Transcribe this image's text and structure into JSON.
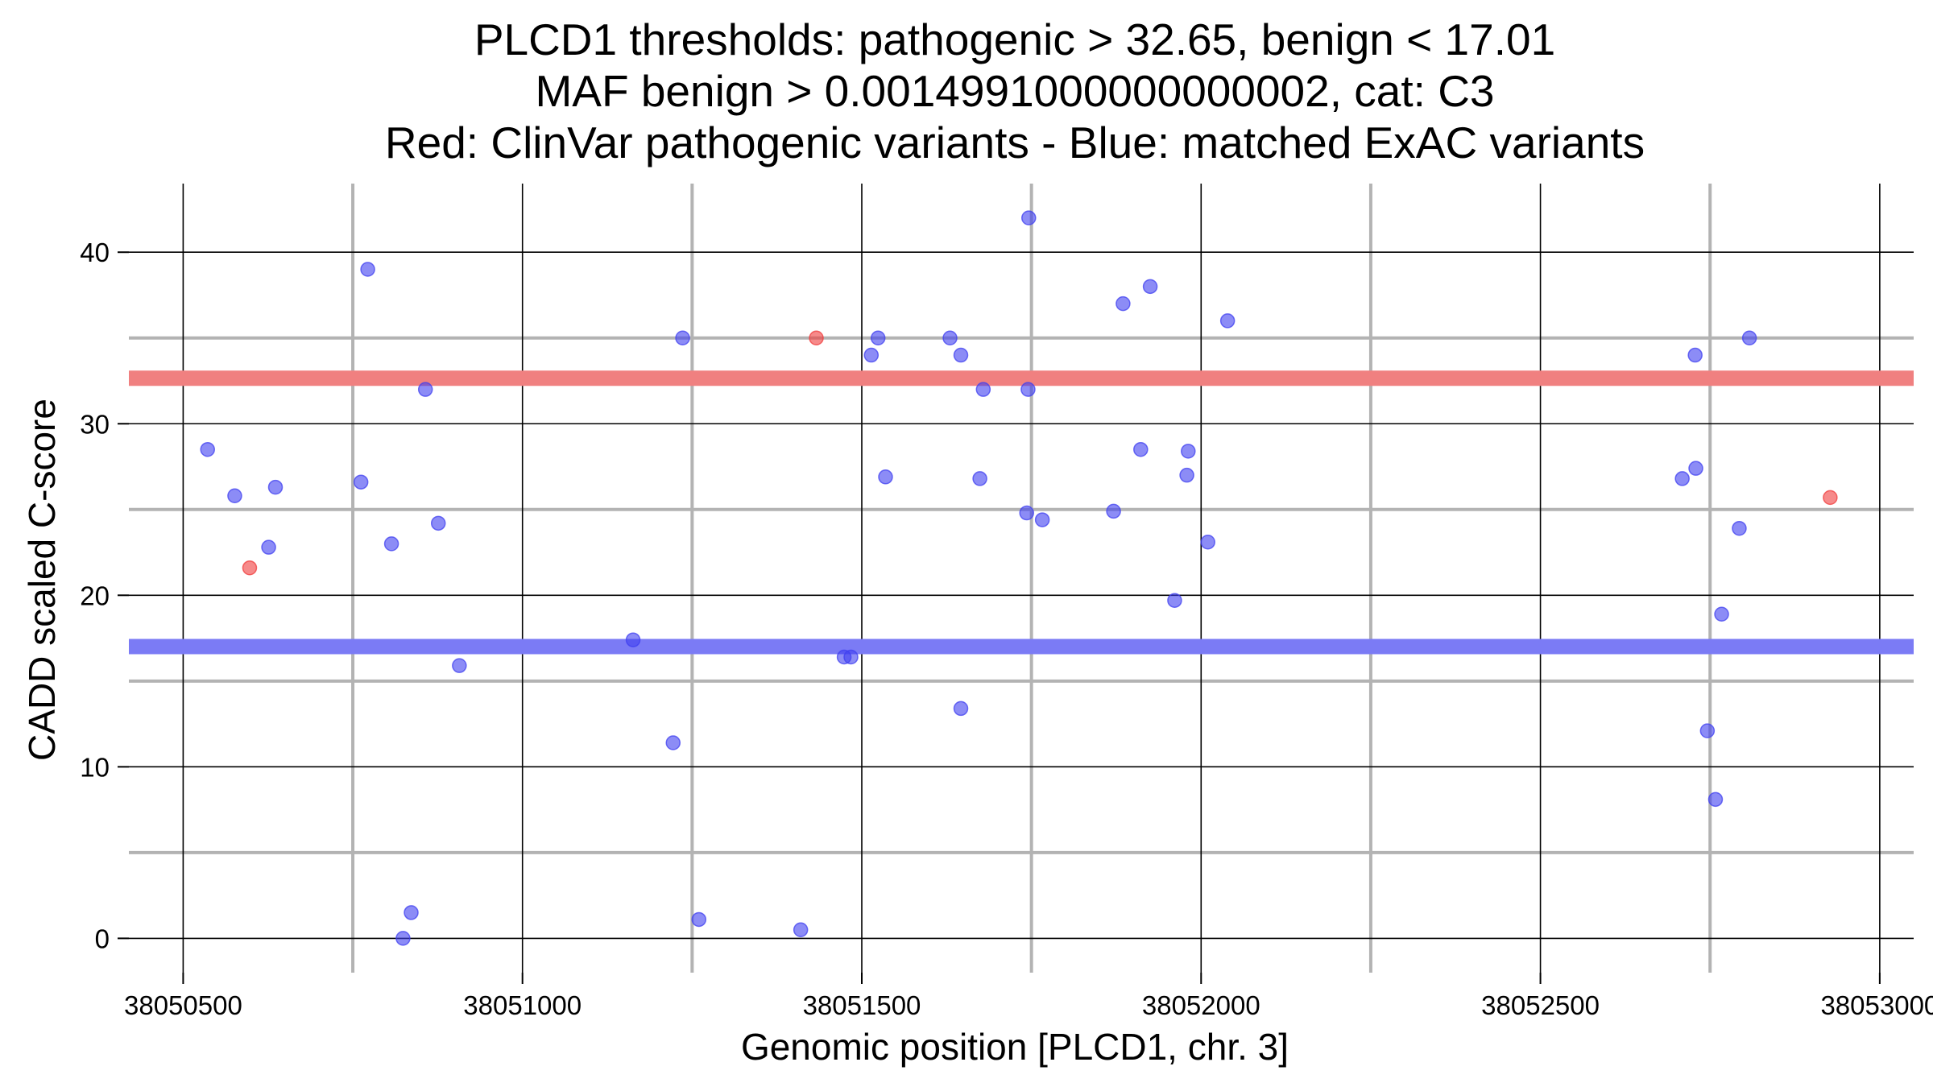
{
  "chart_data": {
    "type": "scatter",
    "title_lines": [
      "PLCD1 thresholds: pathogenic > 32.65, benign < 17.01",
      "MAF benign > 0.0014991000000000002, cat: C3",
      "Red: ClinVar pathogenic variants - Blue: matched ExAC variants"
    ],
    "xlabel": "Genomic position [PLCD1, chr. 3]",
    "ylabel": "CADD scaled C-score",
    "xlim": [
      38050420,
      38053050
    ],
    "ylim": [
      -2,
      44
    ],
    "x_ticks": [
      38050500,
      38051000,
      38051500,
      38052000,
      38052500,
      38053000
    ],
    "x_tick_labels": [
      "38050500",
      "38051000",
      "38051500",
      "38052000",
      "38052500",
      "38053000"
    ],
    "y_ticks": [
      0,
      10,
      20,
      30,
      40
    ],
    "y_tick_labels": [
      "0",
      "10",
      "20",
      "30",
      "40"
    ],
    "minor_x_gridlines": [
      38050750,
      38051250,
      38051750,
      38052250,
      38052750
    ],
    "minor_y_gridlines": [
      5,
      15,
      25,
      35
    ],
    "grid": true,
    "thresholds": [
      {
        "name": "pathogenic",
        "value": 32.65,
        "color": "#f08080"
      },
      {
        "name": "benign",
        "value": 17.01,
        "color": "#7b7bf5"
      }
    ],
    "series": [
      {
        "color": "#4040f0",
        "points": [
          {
            "x": 38050536,
            "y": 28.5
          },
          {
            "x": 38050576,
            "y": 25.8
          },
          {
            "x": 38050626,
            "y": 22.8
          },
          {
            "x": 38050636,
            "y": 26.3
          },
          {
            "x": 38050762,
            "y": 26.6
          },
          {
            "x": 38050772,
            "y": 39.0
          },
          {
            "x": 38050807,
            "y": 23.0
          },
          {
            "x": 38050824,
            "y": 0.0
          },
          {
            "x": 38050836,
            "y": 1.5
          },
          {
            "x": 38050857,
            "y": 32.0
          },
          {
            "x": 38050876,
            "y": 24.2
          },
          {
            "x": 38050907,
            "y": 15.9
          },
          {
            "x": 38051163,
            "y": 17.4
          },
          {
            "x": 38051222,
            "y": 11.4
          },
          {
            "x": 38051236,
            "y": 35.0
          },
          {
            "x": 38051260,
            "y": 1.1
          },
          {
            "x": 38051410,
            "y": 0.5
          },
          {
            "x": 38051474,
            "y": 16.4
          },
          {
            "x": 38051484,
            "y": 16.4
          },
          {
            "x": 38051514,
            "y": 34.0
          },
          {
            "x": 38051524,
            "y": 35.0
          },
          {
            "x": 38051535,
            "y": 26.9
          },
          {
            "x": 38051630,
            "y": 35.0
          },
          {
            "x": 38051646,
            "y": 34.0
          },
          {
            "x": 38051646,
            "y": 13.4
          },
          {
            "x": 38051674,
            "y": 26.8
          },
          {
            "x": 38051679,
            "y": 32.0
          },
          {
            "x": 38051743,
            "y": 24.8
          },
          {
            "x": 38051745,
            "y": 32.0
          },
          {
            "x": 38051746,
            "y": 42.0
          },
          {
            "x": 38051766,
            "y": 24.4
          },
          {
            "x": 38051871,
            "y": 24.9
          },
          {
            "x": 38051885,
            "y": 37.0
          },
          {
            "x": 38051911,
            "y": 28.5
          },
          {
            "x": 38051925,
            "y": 38.0
          },
          {
            "x": 38051961,
            "y": 19.7
          },
          {
            "x": 38051979,
            "y": 27.0
          },
          {
            "x": 38051981,
            "y": 28.4
          },
          {
            "x": 38052010,
            "y": 23.1
          },
          {
            "x": 38052039,
            "y": 36.0
          },
          {
            "x": 38052709,
            "y": 26.8
          },
          {
            "x": 38052728,
            "y": 34.0
          },
          {
            "x": 38052729,
            "y": 27.4
          },
          {
            "x": 38052746,
            "y": 12.1
          },
          {
            "x": 38052758,
            "y": 8.1
          },
          {
            "x": 38052767,
            "y": 18.9
          },
          {
            "x": 38052793,
            "y": 23.9
          },
          {
            "x": 38052808,
            "y": 35.0
          }
        ]
      },
      {
        "color": "#f03c3c",
        "points": [
          {
            "x": 38050598,
            "y": 21.6
          },
          {
            "x": 38051433,
            "y": 35.0
          },
          {
            "x": 38052927,
            "y": 25.7
          }
        ]
      }
    ]
  }
}
